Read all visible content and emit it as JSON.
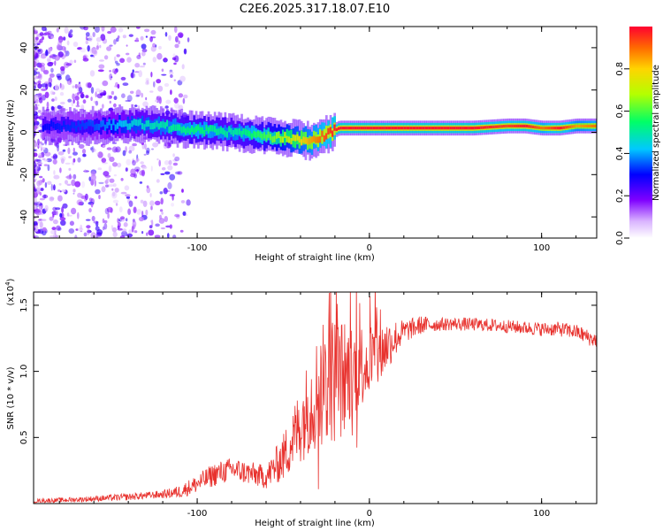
{
  "title": "C2E6.2025.317.18.07.E10",
  "colors": {
    "snr_line": "#e8322e",
    "background": "#ffffff",
    "axis": "#000000"
  },
  "chart_data": [
    {
      "type": "heatmap",
      "name": "spectrogram",
      "xlabel": "Height of straight line (km)",
      "ylabel": "Frequency (Hz)",
      "xlim": [
        -195,
        132
      ],
      "ylim": [
        -50,
        50
      ],
      "x_ticks": [
        -100,
        0,
        100
      ],
      "x_tick_labels": [
        "-100",
        "0",
        "100"
      ],
      "y_ticks": [
        -40,
        -20,
        0,
        20,
        40
      ],
      "y_tick_labels": [
        "-40",
        "-20",
        "0",
        "20",
        "40"
      ],
      "colorbar": {
        "label": "Normalized spectral amplitude",
        "range": [
          0,
          1
        ],
        "ticks": [
          0.0,
          0.2,
          0.4,
          0.6,
          0.8
        ],
        "tick_labels": [
          "0.0",
          "0.2",
          "0.4",
          "0.6",
          "0.8"
        ]
      },
      "ridge": {
        "description": "dominant frequency trace vs height",
        "x": [
          -190,
          -160,
          -140,
          -120,
          -100,
          -80,
          -60,
          -45,
          -35,
          -25,
          -18,
          -10,
          0,
          10,
          20,
          40,
          60,
          80,
          90,
          100,
          110,
          120,
          130
        ],
        "y": [
          3,
          3,
          4,
          3,
          1,
          0,
          -2,
          -3,
          -4,
          -1,
          2,
          2,
          2,
          2,
          2,
          2,
          2,
          3,
          3,
          2,
          2,
          3,
          3
        ],
        "amplitude": [
          0.3,
          0.35,
          0.45,
          0.5,
          0.55,
          0.5,
          0.6,
          0.75,
          0.85,
          0.95,
          1.0,
          1.0,
          1.0,
          1.0,
          1.0,
          1.0,
          1.0,
          0.95,
          1.0,
          0.9,
          1.0,
          0.85,
          0.9
        ]
      }
    },
    {
      "type": "line",
      "name": "snr",
      "xlabel": "Height of straight line (km)",
      "ylabel": "SNR (10 * v/v)",
      "y_scale_label": "(x10",
      "y_scale_exp": "4",
      "y_scale_close": ")",
      "xlim": [
        -195,
        132
      ],
      "ylim": [
        0,
        16000
      ],
      "x_ticks": [
        -100,
        0,
        100
      ],
      "x_tick_labels": [
        "-100",
        "0",
        "100"
      ],
      "y_ticks": [
        5000,
        10000,
        15000
      ],
      "y_tick_labels": [
        "0.5",
        "1.0",
        "1.5"
      ],
      "envelope": {
        "x": [
          -195,
          -170,
          -140,
          -120,
          -110,
          -100,
          -90,
          -80,
          -70,
          -60,
          -50,
          -40,
          -35,
          -30,
          -25,
          -20,
          -15,
          -10,
          -5,
          0,
          5,
          10,
          15,
          20,
          30,
          50,
          70,
          90,
          100,
          110,
          120,
          130
        ],
        "y": [
          200,
          300,
          500,
          700,
          900,
          1500,
          2200,
          2600,
          2300,
          2000,
          3500,
          6000,
          7500,
          8500,
          9000,
          9500,
          9500,
          10000,
          10500,
          11000,
          11000,
          12000,
          12500,
          13000,
          13500,
          13600,
          13500,
          13300,
          13200,
          13200,
          13000,
          12400
        ]
      },
      "noise_amp": {
        "x": [
          -195,
          -120,
          -90,
          -60,
          -50,
          -40,
          -30,
          -20,
          -15,
          -10,
          0,
          10,
          20,
          40,
          90,
          130
        ],
        "y": [
          150,
          300,
          900,
          900,
          1800,
          3000,
          4500,
          5000,
          4500,
          3500,
          3000,
          2000,
          900,
          500,
          500,
          600
        ]
      }
    }
  ]
}
